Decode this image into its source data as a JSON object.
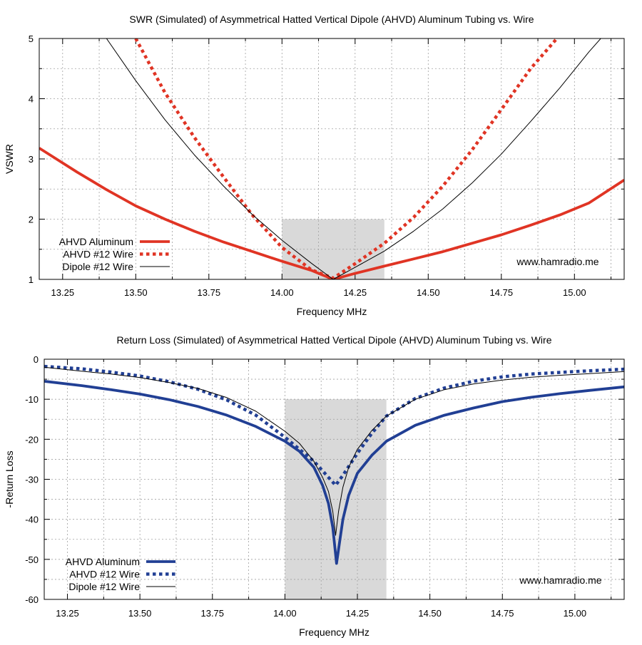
{
  "chart_data": [
    {
      "type": "line",
      "title": "SWR (Simulated) of Asymmetrical Hatted Vertical Dipole (AHVD) Aluminum Tubing vs. Wire",
      "xlabel": "Frequency MHz",
      "ylabel": "VSWR",
      "xlim": [
        13.17,
        15.17
      ],
      "ylim": [
        1,
        5
      ],
      "x_ticks": [
        "13.25",
        "13.50",
        "13.75",
        "14.00",
        "14.25",
        "14.50",
        "14.75",
        "15.00"
      ],
      "x_tick_values": [
        13.25,
        13.5,
        13.75,
        14.0,
        14.25,
        14.5,
        14.75,
        15.0
      ],
      "y_ticks": [
        "1",
        "2",
        "3",
        "4",
        "5"
      ],
      "y_tick_values": [
        1,
        2,
        3,
        4,
        5
      ],
      "grid": true,
      "legend": "bottom-left",
      "watermark": "www.hamradio.me",
      "band": {
        "x": [
          14.0,
          14.35
        ],
        "y": [
          1,
          2
        ],
        "color": "#d9d9d9"
      },
      "series": [
        {
          "name": "AHVD Aluminum",
          "style": "solid-thick",
          "color": "#e03424",
          "x": [
            13.17,
            13.3,
            13.4,
            13.5,
            13.6,
            13.7,
            13.8,
            13.9,
            14.0,
            14.1,
            14.175,
            14.25,
            14.35,
            14.45,
            14.55,
            14.65,
            14.75,
            14.85,
            14.95,
            15.05,
            15.17
          ],
          "y": [
            3.18,
            2.78,
            2.49,
            2.22,
            2.0,
            1.8,
            1.62,
            1.46,
            1.3,
            1.15,
            1.0,
            1.1,
            1.22,
            1.34,
            1.46,
            1.6,
            1.74,
            1.9,
            2.07,
            2.27,
            2.65
          ]
        },
        {
          "name": "AHVD #12 Wire",
          "style": "dotted-thick",
          "color": "#e03424",
          "x": [
            13.5,
            13.6,
            13.7,
            13.8,
            13.9,
            14.0,
            14.1,
            14.175,
            14.25,
            14.35,
            14.45,
            14.55,
            14.65,
            14.75,
            14.85,
            14.94
          ],
          "y": [
            5.0,
            4.1,
            3.36,
            2.7,
            2.06,
            1.53,
            1.16,
            1.02,
            1.26,
            1.6,
            2.03,
            2.55,
            3.15,
            3.82,
            4.5,
            5.0
          ]
        },
        {
          "name": "Dipole #12 Wire",
          "style": "solid-thin",
          "color": "#000000",
          "x": [
            13.4,
            13.5,
            13.6,
            13.7,
            13.8,
            13.9,
            14.0,
            14.1,
            14.175,
            14.25,
            14.35,
            14.45,
            14.55,
            14.65,
            14.75,
            14.85,
            14.95,
            15.05,
            15.09
          ],
          "y": [
            5.0,
            4.3,
            3.65,
            3.07,
            2.55,
            2.07,
            1.65,
            1.27,
            1.0,
            1.2,
            1.47,
            1.8,
            2.17,
            2.6,
            3.08,
            3.62,
            4.18,
            4.78,
            5.0
          ]
        }
      ]
    },
    {
      "type": "line",
      "title": "Return Loss (Simulated) of Asymmetrical Hatted Vertical Dipole (AHVD) Aluminum Tubing vs. Wire",
      "xlabel": "Frequency MHz",
      "ylabel": "-Return Loss",
      "xlim": [
        13.17,
        15.17
      ],
      "ylim": [
        -60,
        0
      ],
      "x_ticks": [
        "13.25",
        "13.50",
        "13.75",
        "14.00",
        "14.25",
        "14.50",
        "14.75",
        "15.00"
      ],
      "x_tick_values": [
        13.25,
        13.5,
        13.75,
        14.0,
        14.25,
        14.5,
        14.75,
        15.0
      ],
      "y_ticks": [
        "0",
        "-10",
        "-20",
        "-30",
        "-40",
        "-50",
        "-60"
      ],
      "y_tick_values": [
        0,
        -10,
        -20,
        -30,
        -40,
        -50,
        -60
      ],
      "grid": true,
      "legend": "bottom-left",
      "watermark": "www.hamradio.me",
      "band": {
        "x": [
          14.0,
          14.35
        ],
        "y": [
          -60,
          -10
        ],
        "color": "#d9d9d9"
      },
      "series": [
        {
          "name": "AHVD Aluminum",
          "style": "solid-thick",
          "color": "#213f94",
          "x": [
            13.17,
            13.3,
            13.4,
            13.5,
            13.6,
            13.7,
            13.8,
            13.9,
            14.0,
            14.05,
            14.1,
            14.13,
            14.15,
            14.165,
            14.178,
            14.19,
            14.2,
            14.22,
            14.25,
            14.3,
            14.35,
            14.45,
            14.55,
            14.65,
            14.75,
            14.85,
            14.95,
            15.05,
            15.17
          ],
          "y": [
            -5.5,
            -6.6,
            -7.6,
            -8.7,
            -10.1,
            -11.8,
            -14.0,
            -16.8,
            -20.5,
            -23.0,
            -27.0,
            -31.5,
            -36.0,
            -42.0,
            -51.0,
            -45.0,
            -40.0,
            -34.0,
            -28.5,
            -24.0,
            -20.5,
            -16.5,
            -14.0,
            -12.2,
            -10.6,
            -9.5,
            -8.6,
            -7.8,
            -6.9
          ]
        },
        {
          "name": "AHVD #12 Wire",
          "style": "dotted-thick",
          "color": "#213f94",
          "x": [
            13.17,
            13.3,
            13.4,
            13.5,
            13.6,
            13.7,
            13.8,
            13.9,
            14.0,
            14.05,
            14.1,
            14.15,
            14.175,
            14.2,
            14.25,
            14.3,
            14.35,
            14.45,
            14.55,
            14.65,
            14.75,
            14.85,
            14.95,
            15.05,
            15.17
          ],
          "y": [
            -1.8,
            -2.4,
            -3.2,
            -4.2,
            -5.6,
            -7.5,
            -10.2,
            -14.0,
            -19.5,
            -22.5,
            -25.5,
            -29.5,
            -31.5,
            -29.0,
            -23.5,
            -18.5,
            -14.2,
            -9.8,
            -7.2,
            -5.5,
            -4.4,
            -3.7,
            -3.3,
            -2.9,
            -2.5
          ]
        },
        {
          "name": "Dipole #12 Wire",
          "style": "solid-thin",
          "color": "#000000",
          "x": [
            13.17,
            13.3,
            13.4,
            13.5,
            13.6,
            13.7,
            13.8,
            13.9,
            14.0,
            14.05,
            14.1,
            14.13,
            14.15,
            14.165,
            14.175,
            14.185,
            14.2,
            14.22,
            14.25,
            14.3,
            14.35,
            14.45,
            14.55,
            14.65,
            14.75,
            14.85,
            14.95,
            15.05,
            15.17
          ],
          "y": [
            -2.0,
            -3.0,
            -3.7,
            -4.6,
            -5.8,
            -7.3,
            -9.6,
            -13.0,
            -18.0,
            -21.0,
            -25.5,
            -29.5,
            -33.0,
            -38.0,
            -44.0,
            -38.0,
            -32.0,
            -27.0,
            -22.5,
            -17.8,
            -14.2,
            -10.0,
            -7.6,
            -6.2,
            -5.2,
            -4.5,
            -4.0,
            -3.6,
            -3.1
          ]
        }
      ]
    }
  ]
}
